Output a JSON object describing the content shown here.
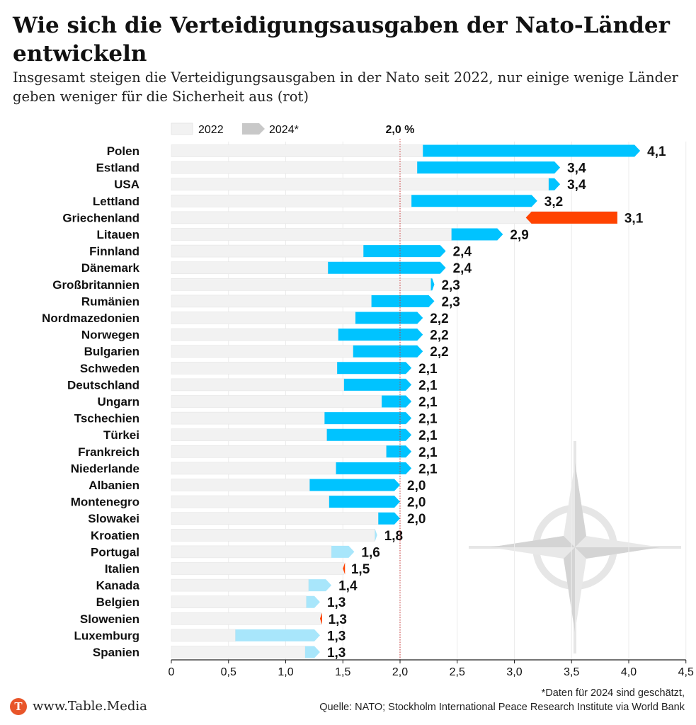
{
  "title": "Wie sich die Verteidigungsausgaben der Nato-Länder entwickeln",
  "subtitle": "Insgesamt steigen die Verteidigungsausgaben in der Nato seit 2022, nur einige wenige Länder geben weniger für die Sicherheit aus (rot)",
  "footer": {
    "site": "www.Table.Media",
    "logo_letter": "T",
    "note_line1": "*Daten für 2024 sind geschätzt,",
    "note_line2": "Quelle: NATO; Stockholm International Peace Research Institute via World Bank"
  },
  "colors": {
    "increase": "#00c3ff",
    "increase_small": "#a8e6fb",
    "decrease": "#ff4300",
    "baseline_2022": "#f2f2f2",
    "legend_2024": "#c8c8c8",
    "reference_line": "#cc3333"
  },
  "chart_data": {
    "type": "bar",
    "legend": [
      "2022",
      "2024*"
    ],
    "reference_line": {
      "value": 2.0,
      "label": "2,0 %"
    },
    "xlim": [
      0,
      4.5
    ],
    "xticks": [
      0,
      0.5,
      1.0,
      1.5,
      2.0,
      2.5,
      3.0,
      3.5,
      4.0,
      4.5
    ],
    "xtick_labels": [
      "0",
      "0,5",
      "1,0",
      "1,5",
      "2,0",
      "2,5",
      "3,0",
      "3,5",
      "4,0",
      "4,5"
    ],
    "rows": [
      {
        "country": "Polen",
        "v2022": 2.2,
        "v2024": 4.1,
        "label": "4,1"
      },
      {
        "country": "Estland",
        "v2022": 2.15,
        "v2024": 3.4,
        "label": "3,4"
      },
      {
        "country": "USA",
        "v2022": 3.3,
        "v2024": 3.4,
        "label": "3,4"
      },
      {
        "country": "Lettland",
        "v2022": 2.1,
        "v2024": 3.2,
        "label": "3,2"
      },
      {
        "country": "Griechenland",
        "v2022": 3.9,
        "v2024": 3.1,
        "label": "3,1"
      },
      {
        "country": "Litauen",
        "v2022": 2.45,
        "v2024": 2.9,
        "label": "2,9"
      },
      {
        "country": "Finnland",
        "v2022": 1.68,
        "v2024": 2.4,
        "label": "2,4"
      },
      {
        "country": "Dänemark",
        "v2022": 1.37,
        "v2024": 2.4,
        "label": "2,4"
      },
      {
        "country": "Großbritannien",
        "v2022": 2.27,
        "v2024": 2.3,
        "label": "2,3"
      },
      {
        "country": "Rumänien",
        "v2022": 1.75,
        "v2024": 2.3,
        "label": "2,3"
      },
      {
        "country": "Nordmazedonien",
        "v2022": 1.61,
        "v2024": 2.2,
        "label": "2,2"
      },
      {
        "country": "Norwegen",
        "v2022": 1.46,
        "v2024": 2.2,
        "label": "2,2"
      },
      {
        "country": "Bulgarien",
        "v2022": 1.59,
        "v2024": 2.2,
        "label": "2,2"
      },
      {
        "country": "Schweden",
        "v2022": 1.45,
        "v2024": 2.1,
        "label": "2,1"
      },
      {
        "country": "Deutschland",
        "v2022": 1.51,
        "v2024": 2.1,
        "label": "2,1"
      },
      {
        "country": "Ungarn",
        "v2022": 1.84,
        "v2024": 2.1,
        "label": "2,1"
      },
      {
        "country": "Tschechien",
        "v2022": 1.34,
        "v2024": 2.1,
        "label": "2,1"
      },
      {
        "country": "Türkei",
        "v2022": 1.36,
        "v2024": 2.1,
        "label": "2,1"
      },
      {
        "country": "Frankreich",
        "v2022": 1.88,
        "v2024": 2.1,
        "label": "2,1"
      },
      {
        "country": "Niederlande",
        "v2022": 1.44,
        "v2024": 2.1,
        "label": "2,1"
      },
      {
        "country": "Albanien",
        "v2022": 1.21,
        "v2024": 2.0,
        "label": "2,0"
      },
      {
        "country": "Montenegro",
        "v2022": 1.38,
        "v2024": 2.0,
        "label": "2,0"
      },
      {
        "country": "Slowakei",
        "v2022": 1.81,
        "v2024": 2.0,
        "label": "2,0"
      },
      {
        "country": "Kroatien",
        "v2022": 1.78,
        "v2024": 1.8,
        "label": "1,8"
      },
      {
        "country": "Portugal",
        "v2022": 1.4,
        "v2024": 1.6,
        "label": "1,6"
      },
      {
        "country": "Italien",
        "v2022": 1.51,
        "v2024": 1.5,
        "label": "1,5"
      },
      {
        "country": "Kanada",
        "v2022": 1.2,
        "v2024": 1.4,
        "label": "1,4"
      },
      {
        "country": "Belgien",
        "v2022": 1.18,
        "v2024": 1.3,
        "label": "1,3"
      },
      {
        "country": "Slowenien",
        "v2022": 1.31,
        "v2024": 1.3,
        "label": "1,3"
      },
      {
        "country": "Luxemburg",
        "v2022": 0.56,
        "v2024": 1.3,
        "label": "1,3"
      },
      {
        "country": "Spanien",
        "v2022": 1.17,
        "v2024": 1.3,
        "label": "1,3"
      }
    ]
  }
}
